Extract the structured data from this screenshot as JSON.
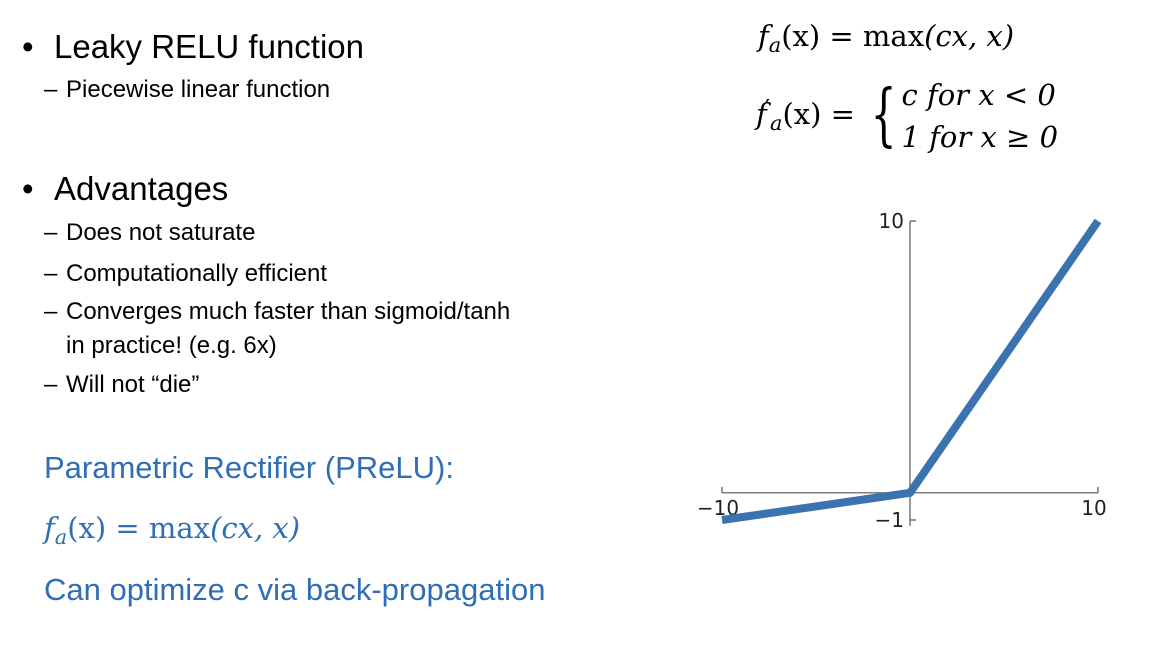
{
  "left": {
    "bullet1": {
      "dot": "•",
      "title": "Leaky RELU function",
      "items": [
        {
          "dash": "–",
          "text": "Piecewise linear function"
        }
      ]
    },
    "bullet2": {
      "dot": "•",
      "title": "Advantages",
      "items": [
        {
          "dash": "–",
          "text": "Does not saturate"
        },
        {
          "dash": "–",
          "text": "Computationally efficient"
        },
        {
          "dash": "–",
          "text": "Converges much faster than sigmoid/tanh"
        },
        {
          "dash": "",
          "text": "in practice! (e.g. 6x)"
        },
        {
          "dash": "–",
          "text": "Will not “die”"
        }
      ]
    },
    "prelu": {
      "title": "Parametric Rectifier (PReLU):",
      "formula": {
        "f": "f",
        "sub": "a",
        "lhs": "(x) = ",
        "fn": "max",
        "args": "(cx, x)"
      },
      "note": "Can optimize c via back-propagation"
    }
  },
  "formulas": {
    "f1": {
      "f": "f",
      "sub": "a",
      "lhs": "(x) = ",
      "fn": "max",
      "args": "(cx, x)"
    },
    "f2": {
      "f": "f",
      "prime": "′",
      "sub": "a",
      "lhs": "(x) = ",
      "brace": "{",
      "case1": "c for x < 0",
      "case2": "1 for x ≥ 0"
    }
  },
  "colors": {
    "line": "#3b73b0",
    "axis": "#555555",
    "accent_text": "#2f6eb5"
  },
  "chart_data": {
    "type": "line",
    "x": [
      -10,
      0,
      10
    ],
    "y": [
      -1,
      0,
      10
    ],
    "xlim": [
      -10,
      10
    ],
    "ylim": [
      -1,
      10
    ],
    "xticks": [
      {
        "value": -10,
        "label": "−10"
      },
      {
        "value": 10,
        "label": "10"
      }
    ],
    "yticks": [
      {
        "value": 10,
        "label": "10"
      },
      {
        "value": -1,
        "label": "−1"
      }
    ],
    "grid": false,
    "title": "",
    "xlabel": "",
    "ylabel": ""
  }
}
